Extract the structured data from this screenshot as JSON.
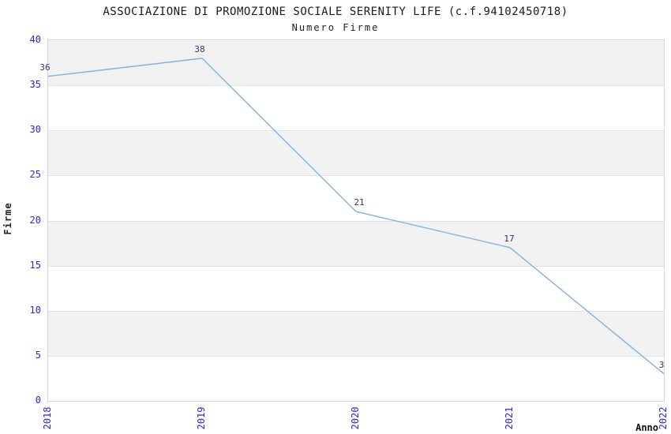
{
  "chart_data": {
    "type": "line",
    "title": "ASSOCIAZIONE DI PROMOZIONE SOCIALE SERENITY LIFE (c.f.94102450718)",
    "subtitle": "Numero Firme",
    "xlabel": "Anno",
    "ylabel": "Firme",
    "x": [
      "2018",
      "2019",
      "2020",
      "2021",
      "2022"
    ],
    "values": [
      36,
      38,
      21,
      17,
      3
    ],
    "point_labels": [
      "36",
      "38",
      "21",
      "17",
      "3"
    ],
    "ylim": [
      0,
      40
    ],
    "yticks": [
      0,
      5,
      10,
      15,
      20,
      25,
      30,
      35,
      40
    ],
    "grid": "alternating-horizontal-bands",
    "legend": "none",
    "colors": {
      "line": "#82b1e3",
      "tick_label": "#2727d4",
      "point_label": "#333366",
      "band_fill": "#f2f2f2",
      "band_line": "#e2e2e2",
      "plot_border": "#d6d6d6",
      "title_text": "#1a1a1a",
      "axis_title_text": "#222222"
    }
  }
}
